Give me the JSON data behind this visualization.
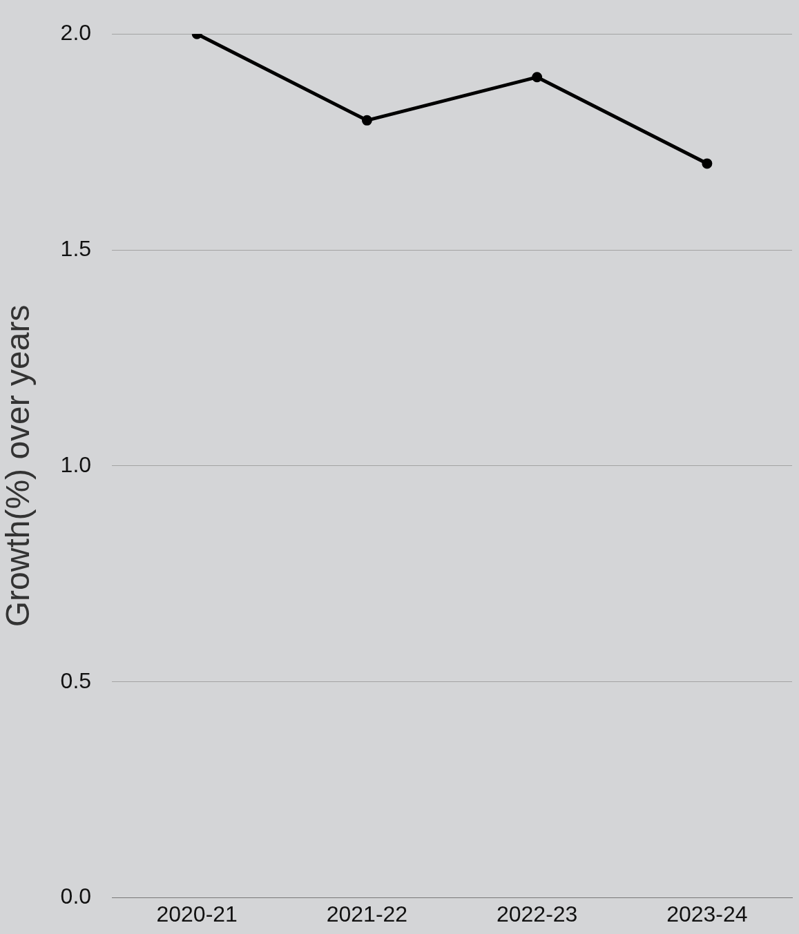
{
  "chart_data": {
    "type": "line",
    "ylabel": "Growth(%) over years",
    "categories": [
      "2020-21",
      "2021-22",
      "2022-23",
      "2023-24"
    ],
    "values": [
      2.0,
      1.8,
      1.9,
      1.7
    ],
    "color": "#000000",
    "ylim": [
      0,
      2.0
    ],
    "yticks": [
      {
        "value": 0,
        "label": "0.0"
      },
      {
        "value": 0.5,
        "label": "0.5"
      },
      {
        "value": 1.0,
        "label": "1.0"
      },
      {
        "value": 1.5,
        "label": "1.5"
      },
      {
        "value": 2.0,
        "label": "2.0"
      }
    ],
    "grid": "y",
    "marker": "circle"
  }
}
